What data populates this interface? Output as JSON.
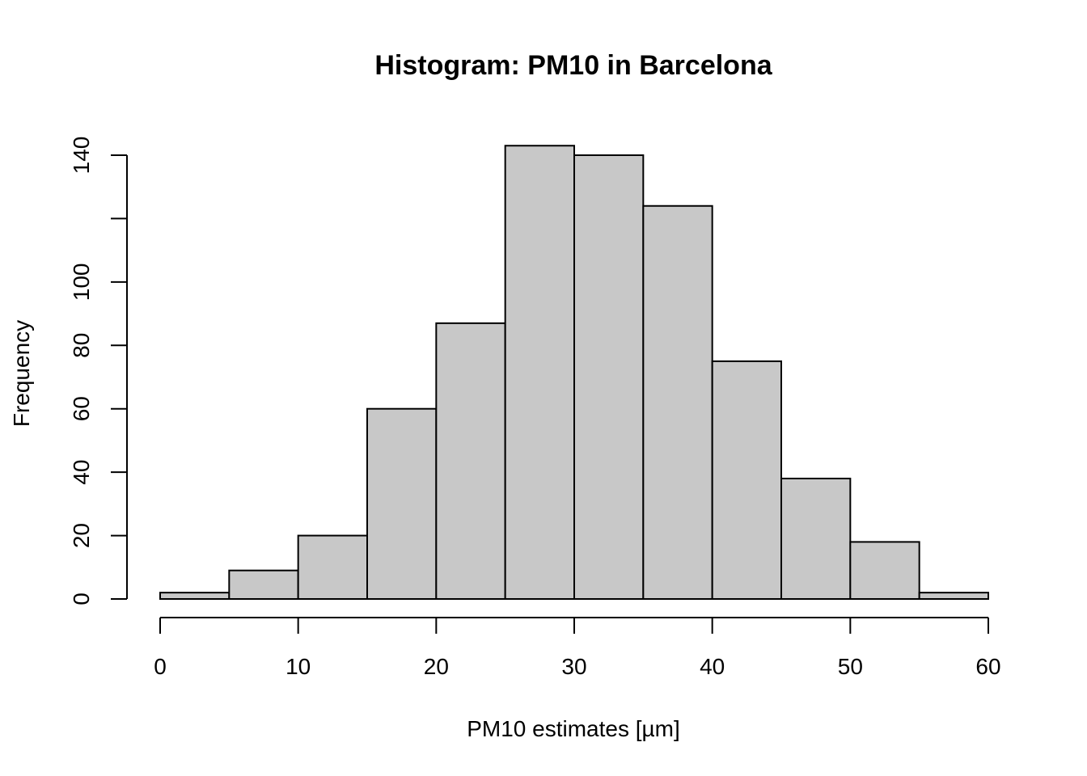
{
  "chart_data": {
    "type": "bar",
    "title": "Histogram: PM10 in Barcelona",
    "xlabel": "PM10 estimates [µm]",
    "ylabel": "Frequency",
    "bins": [
      {
        "start": 0,
        "end": 5,
        "count": 2
      },
      {
        "start": 5,
        "end": 10,
        "count": 9
      },
      {
        "start": 10,
        "end": 15,
        "count": 20
      },
      {
        "start": 15,
        "end": 20,
        "count": 60
      },
      {
        "start": 20,
        "end": 25,
        "count": 87
      },
      {
        "start": 25,
        "end": 30,
        "count": 143
      },
      {
        "start": 30,
        "end": 35,
        "count": 140
      },
      {
        "start": 35,
        "end": 40,
        "count": 124
      },
      {
        "start": 40,
        "end": 45,
        "count": 75
      },
      {
        "start": 45,
        "end": 50,
        "count": 38
      },
      {
        "start": 50,
        "end": 55,
        "count": 18
      },
      {
        "start": 55,
        "end": 60,
        "count": 2
      }
    ],
    "xlim": [
      0,
      60
    ],
    "ylim": [
      0,
      140
    ],
    "x_ticks": [
      0,
      10,
      20,
      30,
      40,
      50,
      60
    ],
    "y_ticks": [
      0,
      20,
      40,
      60,
      80,
      100,
      120,
      140
    ],
    "y_tick_labels": [
      "0",
      "20",
      "40",
      "60",
      "80",
      "100",
      "",
      "140"
    ],
    "grid": false,
    "legend": "none",
    "colors": {
      "bar_fill": "#c8c8c8",
      "bar_stroke": "#000000"
    }
  }
}
